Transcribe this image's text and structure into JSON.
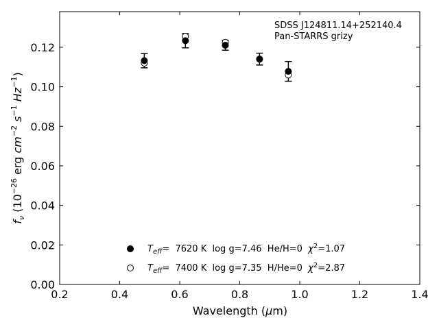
{
  "chart_data": {
    "type": "scatter",
    "title": "",
    "xlabel": "Wavelength (μm)",
    "ylabel": "fν (10⁻²⁶ erg cm⁻² s⁻¹ Hz⁻¹)",
    "xlim": [
      0.2,
      1.4
    ],
    "ylim": [
      0.0,
      0.138
    ],
    "xticks": [
      0.2,
      0.4,
      0.6,
      0.8,
      1.0,
      1.2,
      1.4
    ],
    "xtick_labels": [
      "0.2",
      "0.4",
      "0.6",
      "0.8",
      "1.0",
      "1.2",
      "1.4"
    ],
    "yticks": [
      0.0,
      0.02,
      0.04,
      0.06,
      0.08,
      0.1,
      0.12
    ],
    "ytick_labels": [
      "0.00",
      "0.02",
      "0.04",
      "0.06",
      "0.08",
      "0.10",
      "0.12"
    ],
    "grid": false,
    "annotation": [
      "SDSS J124811.14+252140.4",
      "Pan-STARRS grizy"
    ],
    "annotation_placement": "top-right",
    "legend_placement": "bottom-center",
    "series": [
      {
        "kind": "observed",
        "marker": "filled-circle",
        "color": "#000000",
        "x": [
          0.482,
          0.619,
          0.752,
          0.866,
          0.962
        ],
        "y": [
          0.1132,
          0.1233,
          0.121,
          0.114,
          0.1078
        ],
        "yerr": [
          0.0036,
          0.0036,
          0.0025,
          0.003,
          0.005
        ],
        "legend_model": "T_eff=  7620 K  log g=7.46  He/H=0  χ²=1.07"
      },
      {
        "kind": "model",
        "marker": "open-circle",
        "color": "#000000",
        "x": [
          0.482,
          0.619,
          0.752,
          0.866,
          0.962
        ],
        "y": [
          0.112,
          0.1255,
          0.1225,
          0.114,
          0.106
        ],
        "legend_model": "T_eff=  7400 K  log g=7.35  H/He=0  χ²=2.87"
      }
    ]
  },
  "legend": [
    {
      "teff_label": "T",
      "teff_sub": "eff",
      "teff_value": "=  7620 K  log g=7.46  He/H=0  ",
      "chi_label": "χ",
      "chi_sup": "2",
      "chi_value": "=1.07"
    },
    {
      "teff_label": "T",
      "teff_sub": "eff",
      "teff_value": "=  7400 K  log g=7.35  H/He=0  ",
      "chi_label": "χ",
      "chi_sup": "2",
      "chi_value": "=2.87"
    }
  ],
  "labels": {
    "xlabel_prefix": "Wavelength (",
    "xlabel_mu": "μ",
    "xlabel_suffix": "m)",
    "ylabel_f": "f",
    "ylabel_nu": "ν",
    "ylabel_open": " (10",
    "ylabel_exp26": "−26",
    "ylabel_erg": " erg ",
    "ylabel_cm": "cm",
    "ylabel_exp2": "−2",
    "ylabel_s": " s",
    "ylabel_exp1": "−1",
    "ylabel_hz": " Hz",
    "ylabel_exp1b": "−1",
    "ylabel_close": ")"
  }
}
